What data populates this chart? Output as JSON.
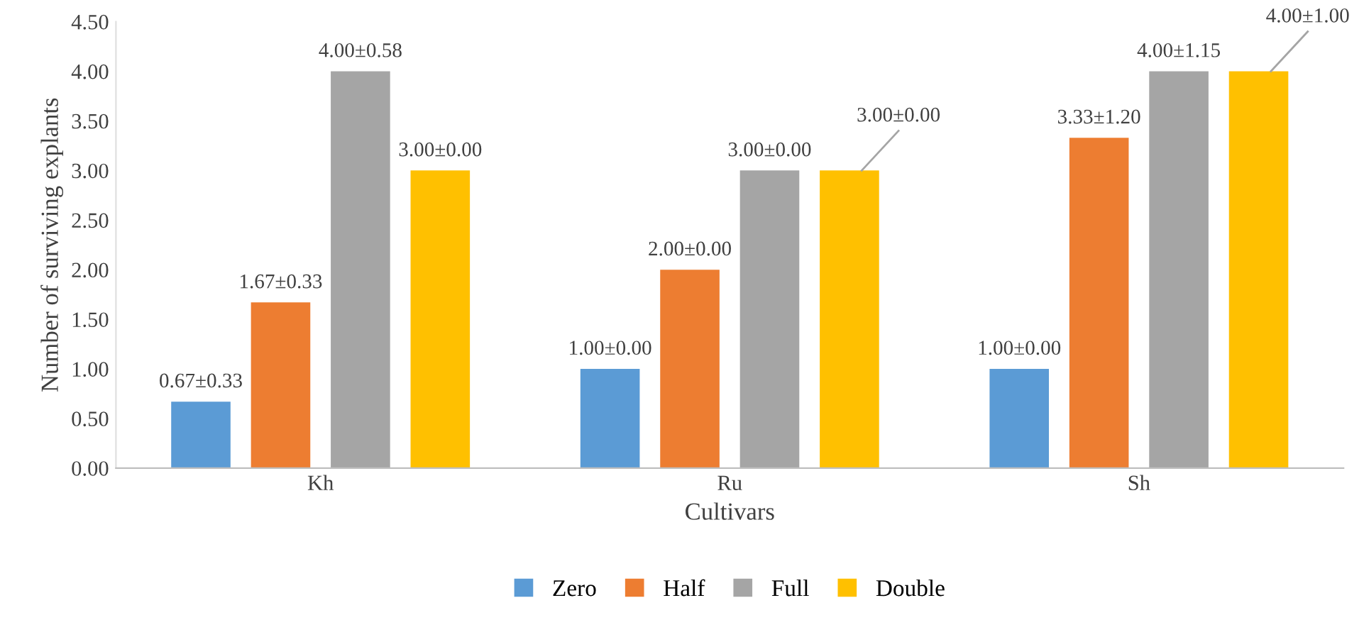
{
  "chart_data": {
    "type": "bar",
    "xlabel": "Cultivars",
    "ylabel": "Number of surviving explants",
    "categories": [
      "Kh",
      "Ru",
      "Sh"
    ],
    "series": [
      {
        "name": "Zero",
        "color": "#5b9bd5",
        "values": [
          0.67,
          1.0,
          1.0
        ],
        "value_labels": [
          "0.67±0.33",
          "1.00±0.00",
          "1.00±0.00"
        ]
      },
      {
        "name": "Half",
        "color": "#ed7d31",
        "values": [
          1.67,
          2.0,
          3.33
        ],
        "value_labels": [
          "1.67±0.33",
          "2.00±0.00",
          "3.33±1.20"
        ]
      },
      {
        "name": "Full",
        "color": "#a5a5a5",
        "values": [
          4.0,
          3.0,
          4.0
        ],
        "value_labels": [
          "4.00±0.58",
          "3.00±0.00",
          "4.00±1.15"
        ]
      },
      {
        "name": "Double",
        "color": "#ffc000",
        "values": [
          3.0,
          3.0,
          4.0
        ],
        "value_labels": [
          "3.00±0.00",
          "3.00±0.00",
          "4.00±1.00"
        ]
      }
    ],
    "ylim": [
      0,
      4.5
    ],
    "yticks": [
      {
        "value": 0,
        "label": "0.00"
      },
      {
        "value": 0.5,
        "label": "0.50"
      },
      {
        "value": 1,
        "label": "1.00"
      },
      {
        "value": 1.5,
        "label": "1.50"
      },
      {
        "value": 2,
        "label": "2.00"
      },
      {
        "value": 2.5,
        "label": "2.50"
      },
      {
        "value": 3,
        "label": "3.00"
      },
      {
        "value": 3.5,
        "label": "3.50"
      },
      {
        "value": 4,
        "label": "4.00"
      },
      {
        "value": 4.5,
        "label": "4.50"
      }
    ],
    "grid": false,
    "legend": "bottom"
  }
}
